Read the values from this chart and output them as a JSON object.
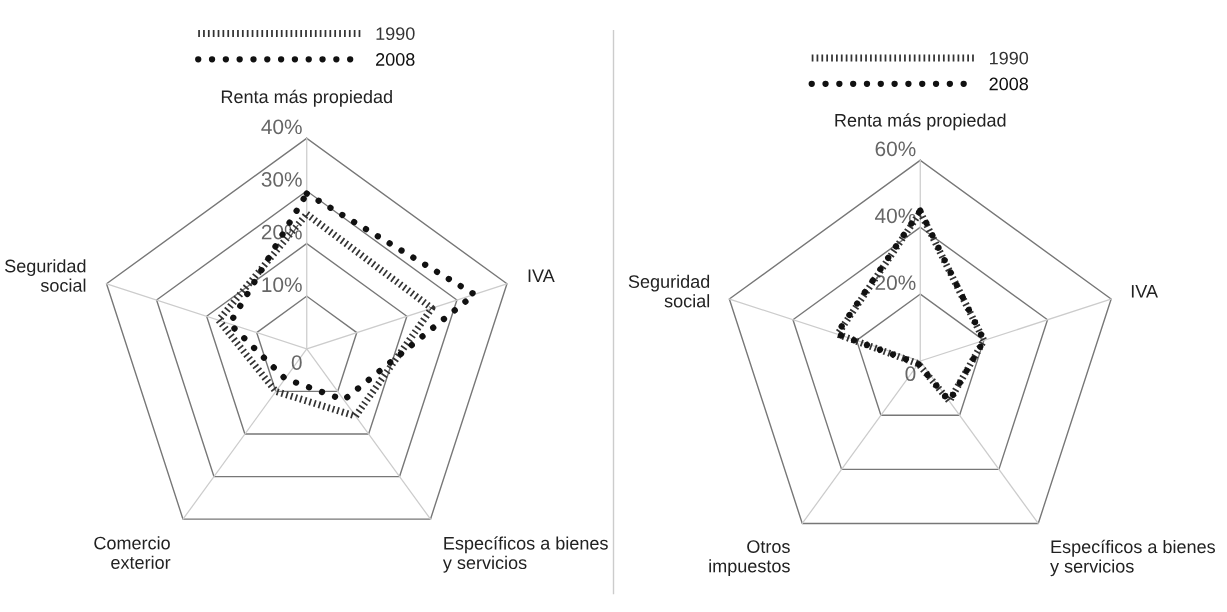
{
  "chart_data": [
    {
      "type": "radar",
      "categories": [
        "Renta más propiedad",
        "IVA",
        "Específicos a bienes\ny servicios",
        "Comercio\nexterior",
        "Seguridad\nsocial"
      ],
      "series": [
        {
          "name": "1990",
          "color": "#333333",
          "line_style": "dotted",
          "values": [
            25.6,
            25,
            15.8,
            10,
            17.6
          ]
        },
        {
          "name": "2008",
          "color": "#111111",
          "line_style": "dotted",
          "marker": "circle",
          "values": [
            29.5,
            33.5,
            12,
            7,
            15.4
          ]
        }
      ],
      "ylim": [
        0,
        40
      ],
      "yticks": [
        {
          "value": 0,
          "label": "0"
        },
        {
          "value": 10,
          "label": "10%"
        },
        {
          "value": 20,
          "label": "20%"
        },
        {
          "value": 30,
          "label": "30%"
        },
        {
          "value": 40,
          "label": "40%"
        }
      ],
      "legend": "top",
      "grid": true
    },
    {
      "type": "radar",
      "categories": [
        "Renta más propiedad",
        "IVA",
        "Específicos a bienes\ny servicios",
        "Otros\nimpuestos",
        "Seguridad\nsocial"
      ],
      "series": [
        {
          "name": "1990",
          "color": "#333333",
          "line_style": "dotted",
          "values": [
            44.5,
            20,
            14.8,
            1,
            26
          ]
        },
        {
          "name": "2008",
          "color": "#111111",
          "line_style": "dotted",
          "marker": "circle",
          "values": [
            45,
            20,
            14.8,
            1,
            26.3
          ]
        }
      ],
      "ylim": [
        0,
        60
      ],
      "yticks": [
        {
          "value": 0,
          "label": "0"
        },
        {
          "value": 20,
          "label": "20%"
        },
        {
          "value": 40,
          "label": "40%"
        },
        {
          "value": 60,
          "label": "60%"
        }
      ],
      "legend": "top",
      "grid": true
    }
  ]
}
